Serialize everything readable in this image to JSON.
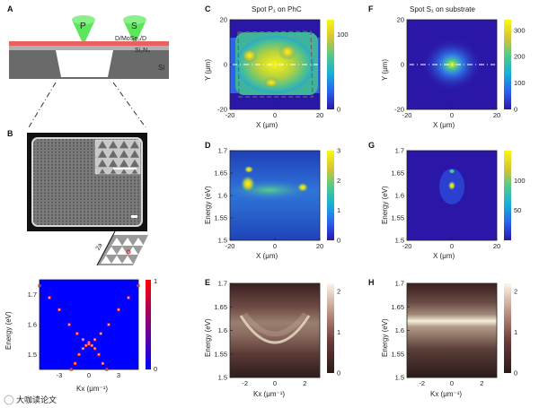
{
  "panels": {
    "A": {
      "label": "A",
      "spot_P": "P",
      "spot_S": "S",
      "stack_label": "D/MoSe₂/D",
      "sin_label": "Si₃N₄",
      "si_label": "Si",
      "colors": {
        "beam": "#5ce65c",
        "top_layer": "#e86060",
        "sin": "#b0b0b0",
        "si": "#6a6a6a"
      }
    },
    "B": {
      "label": "B",
      "lattice_label": "2a"
    },
    "C": {
      "label": "C",
      "title": "Spot P₁ on PhC"
    },
    "D": {
      "label": "D"
    },
    "E": {
      "label": "E"
    },
    "F": {
      "label": "F",
      "title": "Spot S₁ on substrate"
    },
    "G": {
      "label": "G"
    },
    "H": {
      "label": "H"
    }
  },
  "chart_data": [
    {
      "id": "band",
      "type": "heatmap",
      "xlabel": "Kx (μm⁻¹)",
      "ylabel": "Energy (eV)",
      "xticks": [
        -3,
        0,
        3
      ],
      "yticks": [
        1.5,
        1.6,
        1.7
      ],
      "xlim": [
        -5,
        5
      ],
      "ylim": [
        1.45,
        1.75
      ],
      "colorbar": {
        "ticks": [
          0,
          1
        ],
        "colors": [
          "#0000ff",
          "#ff0000"
        ]
      },
      "bands": [
        {
          "name": "upper",
          "x": [
            -5,
            -4,
            -3,
            -2,
            -1.2,
            -0.6,
            0,
            0.6,
            1.2,
            2,
            3,
            4,
            5
          ],
          "y": [
            1.73,
            1.69,
            1.65,
            1.6,
            1.57,
            1.55,
            1.54,
            1.55,
            1.57,
            1.6,
            1.65,
            1.69,
            1.73
          ]
        },
        {
          "name": "lower",
          "x": [
            -1.8,
            -1.4,
            -1,
            -0.6,
            -0.3,
            0,
            0.3,
            0.6,
            1,
            1.4,
            1.8
          ],
          "y": [
            1.45,
            1.47,
            1.5,
            1.52,
            1.53,
            1.535,
            1.53,
            1.52,
            1.5,
            1.47,
            1.45
          ]
        }
      ]
    },
    {
      "id": "C",
      "type": "heatmap",
      "xlabel": "X (μm)",
      "ylabel": "Y (μm)",
      "xticks": [
        -20,
        0,
        20
      ],
      "yticks": [
        -20,
        0,
        20
      ],
      "xlim": [
        -20,
        20
      ],
      "ylim": [
        -20,
        20
      ],
      "colorbar": {
        "ticks": [
          0,
          100
        ],
        "range": [
          0,
          120
        ]
      }
    },
    {
      "id": "D",
      "type": "heatmap",
      "xlabel": "X (μm)",
      "ylabel": "Energy (eV)",
      "xticks": [
        -20,
        0,
        20
      ],
      "yticks": [
        1.5,
        1.55,
        1.6,
        1.65,
        1.7
      ],
      "xlim": [
        -20,
        20
      ],
      "ylim": [
        1.5,
        1.7
      ],
      "colorbar": {
        "ticks": [
          0,
          1,
          2,
          3
        ],
        "range": [
          0,
          3
        ]
      }
    },
    {
      "id": "E",
      "type": "heatmap",
      "xlabel": "Kx (μm⁻¹)",
      "ylabel": "Energy (eV)",
      "xticks": [
        -2,
        0,
        2
      ],
      "yticks": [
        1.5,
        1.55,
        1.6,
        1.65,
        1.7
      ],
      "xlim": [
        -3,
        3
      ],
      "ylim": [
        1.5,
        1.7
      ],
      "colorbar": {
        "ticks": [
          0,
          1,
          2
        ],
        "range": [
          0,
          2.2
        ]
      }
    },
    {
      "id": "F",
      "type": "heatmap",
      "xlabel": "X (μm)",
      "ylabel": "Y (μm)",
      "xticks": [
        -20,
        0,
        20
      ],
      "yticks": [
        -20,
        0,
        20
      ],
      "xlim": [
        -20,
        20
      ],
      "ylim": [
        -20,
        20
      ],
      "colorbar": {
        "ticks": [
          0,
          100,
          200,
          300
        ],
        "range": [
          0,
          340
        ]
      }
    },
    {
      "id": "G",
      "type": "heatmap",
      "xlabel": "X (μm)",
      "ylabel": "Energy (eV)",
      "xticks": [
        -20,
        0,
        20
      ],
      "yticks": [
        1.5,
        1.55,
        1.6,
        1.65,
        1.7
      ],
      "xlim": [
        -20,
        20
      ],
      "ylim": [
        1.5,
        1.7
      ],
      "colorbar": {
        "ticks": [
          50,
          100
        ],
        "range": [
          0,
          150
        ]
      }
    },
    {
      "id": "H",
      "type": "heatmap",
      "xlabel": "Kx (μm⁻¹)",
      "ylabel": "Energy (eV)",
      "xticks": [
        -2,
        0,
        2
      ],
      "yticks": [
        1.5,
        1.55,
        1.6,
        1.65,
        1.7
      ],
      "xlim": [
        -3,
        3
      ],
      "ylim": [
        1.5,
        1.7
      ],
      "colorbar": {
        "ticks": [
          0,
          1,
          2
        ],
        "range": [
          0,
          2.2
        ]
      }
    }
  ],
  "watermark": "大咖读论文"
}
